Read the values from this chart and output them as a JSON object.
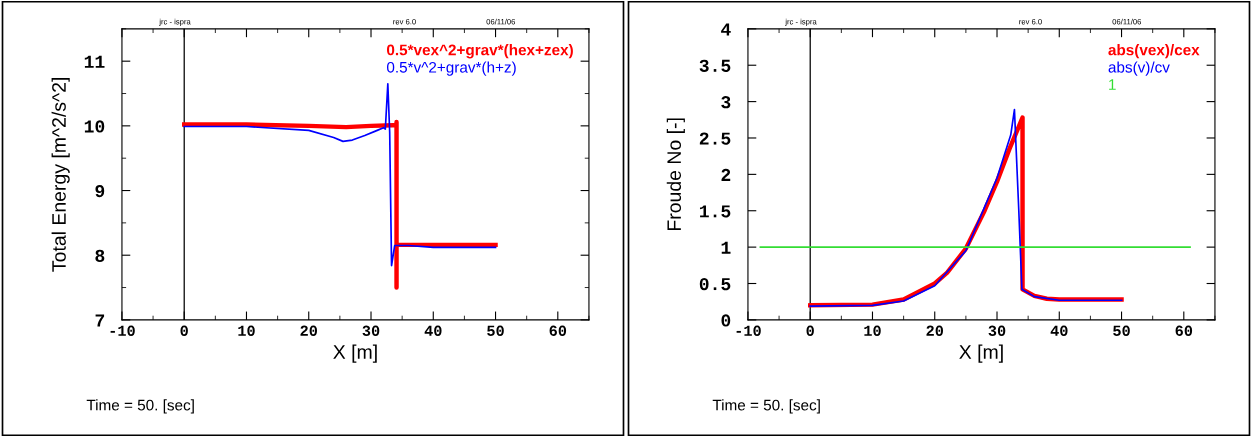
{
  "chart_data": [
    {
      "type": "line",
      "xlabel": "X [m]",
      "ylabel": "Total Energy [m^2/s^2]",
      "xlim": [
        -10,
        65
      ],
      "xticks": [
        -10,
        0,
        10,
        20,
        30,
        40,
        50,
        60
      ],
      "ylim": [
        7,
        11.5
      ],
      "yticks": [
        7,
        8,
        9,
        10,
        11
      ],
      "grid": false,
      "legend": "top right",
      "marker": "none",
      "line_style": "solid",
      "annotations": [
        "jrc - ispra",
        "rev 6.0",
        "06/11/06",
        "Time = 50. [sec]"
      ],
      "ref_lines": [
        {
          "axis": "x",
          "value": 0,
          "color": "#000000"
        }
      ],
      "series": [
        {
          "name": "0.5*vex^2+grav*(hex+zex)",
          "color": "#ff0000",
          "x": [
            0,
            10,
            20,
            26,
            30,
            33.5,
            34.1,
            34.1,
            34.1,
            34.1,
            40,
            50
          ],
          "values": [
            10.02,
            10.02,
            10.0,
            9.98,
            10.0,
            10.01,
            10.01,
            10.06,
            7.5,
            8.16,
            8.16,
            8.16
          ]
        },
        {
          "name": "0.5*v^2+grav*(h+z)",
          "color": "#0000ff",
          "x": [
            0,
            10,
            20,
            24,
            25.5,
            27,
            29,
            31,
            32,
            32.3,
            32.7,
            33.0,
            33.3,
            33.8,
            36,
            40,
            50
          ],
          "values": [
            9.99,
            9.99,
            9.93,
            9.82,
            9.76,
            9.78,
            9.85,
            9.93,
            9.97,
            9.95,
            10.65,
            9.9,
            7.84,
            8.15,
            8.15,
            8.12,
            8.12
          ]
        }
      ]
    },
    {
      "type": "line",
      "xlabel": "X [m]",
      "ylabel": "Froude No [-]",
      "xlim": [
        -10,
        65
      ],
      "xticks": [
        -10,
        0,
        10,
        20,
        30,
        40,
        50,
        60
      ],
      "ylim": [
        0,
        4
      ],
      "yticks": [
        0,
        0.5,
        1,
        1.5,
        2,
        2.5,
        3,
        3.5,
        4
      ],
      "grid": false,
      "legend": "top right",
      "marker": "none",
      "line_style": "solid",
      "annotations": [
        "jrc - ispra",
        "rev 6.0",
        "06/11/06",
        "Time = 50. [sec]"
      ],
      "ref_lines": [
        {
          "axis": "x",
          "value": 0,
          "color": "#000000"
        }
      ],
      "series": [
        {
          "name": "abs(vex)/cex",
          "color": "#ff0000",
          "x": [
            0,
            10,
            15,
            20,
            22,
            25,
            28,
            30,
            32,
            34.1,
            34.1,
            36,
            38,
            40,
            50
          ],
          "values": [
            0.2,
            0.21,
            0.28,
            0.5,
            0.65,
            0.98,
            1.5,
            1.9,
            2.35,
            2.78,
            0.42,
            0.33,
            0.29,
            0.28,
            0.28
          ]
        },
        {
          "name": "abs(v)/cv",
          "color": "#0000ff",
          "x": [
            0,
            10,
            15,
            20,
            25,
            28,
            30,
            32.2,
            32.8,
            33.5,
            34,
            36,
            40,
            50
          ],
          "values": [
            0.19,
            0.2,
            0.26,
            0.47,
            0.95,
            1.55,
            1.95,
            2.54,
            2.89,
            1.5,
            0.42,
            0.32,
            0.27,
            0.27
          ]
        },
        {
          "name": "1",
          "color": "#33dd33",
          "x": [
            -8,
            61
          ],
          "values": [
            1,
            1
          ]
        }
      ]
    }
  ]
}
